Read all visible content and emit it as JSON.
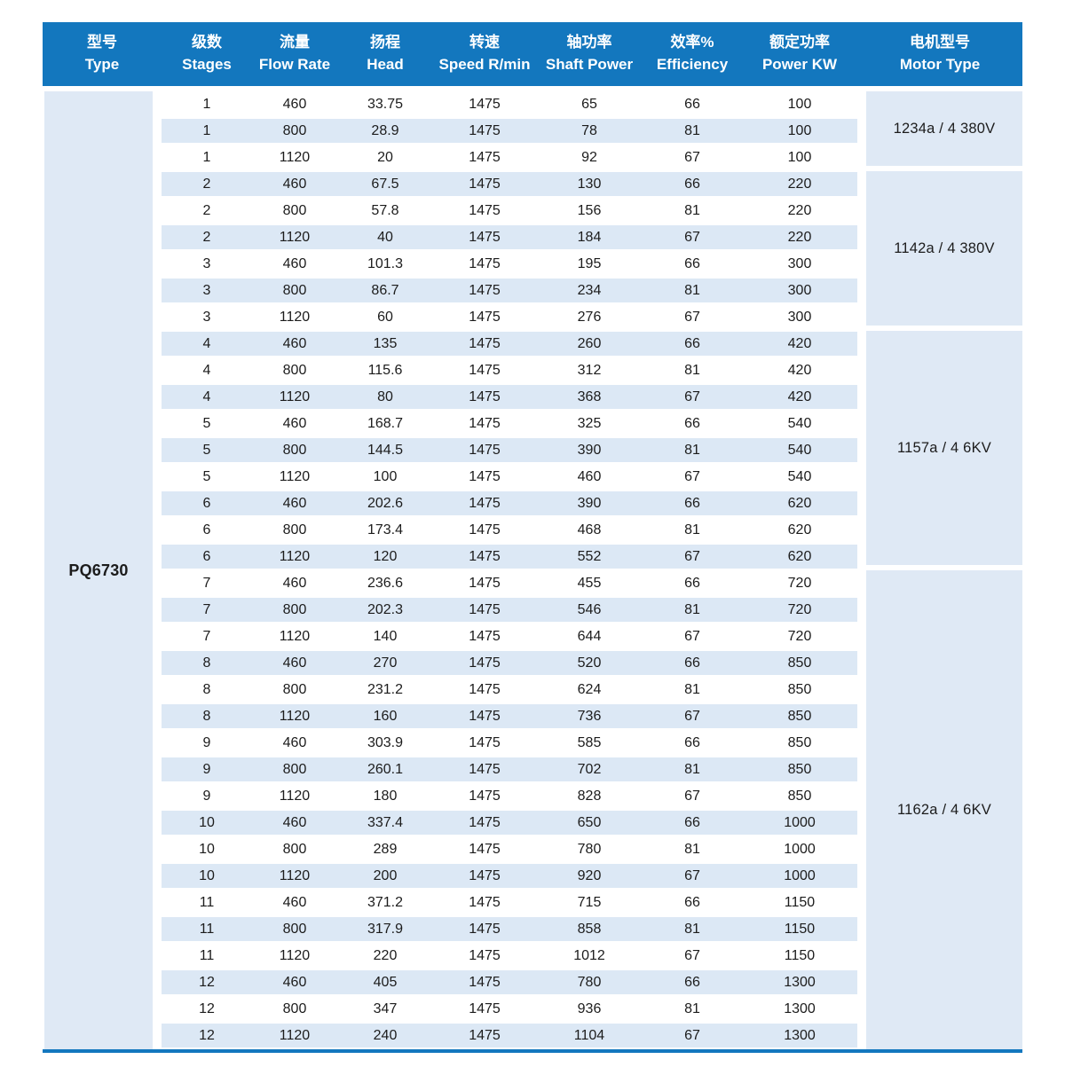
{
  "model": "PQ6730",
  "columns": [
    {
      "zh": "型号",
      "en": "Type"
    },
    {
      "zh": "级数",
      "en": "Stages"
    },
    {
      "zh": "流量",
      "en": "Flow Rate"
    },
    {
      "zh": "扬程",
      "en": "Head"
    },
    {
      "zh": "转速",
      "en": "Speed R/min"
    },
    {
      "zh": "轴功率",
      "en": "Shaft Power"
    },
    {
      "zh": "效率%",
      "en": "Efficiency"
    },
    {
      "zh": "额定功率",
      "en": "Power KW"
    },
    {
      "zh": "电机型号",
      "en": "Motor Type"
    }
  ],
  "rows": [
    [
      "1",
      "460",
      "33.75",
      "1475",
      "65",
      "66",
      "100"
    ],
    [
      "1",
      "800",
      "28.9",
      "1475",
      "78",
      "81",
      "100"
    ],
    [
      "1",
      "1120",
      "20",
      "1475",
      "92",
      "67",
      "100"
    ],
    [
      "2",
      "460",
      "67.5",
      "1475",
      "130",
      "66",
      "220"
    ],
    [
      "2",
      "800",
      "57.8",
      "1475",
      "156",
      "81",
      "220"
    ],
    [
      "2",
      "1120",
      "40",
      "1475",
      "184",
      "67",
      "220"
    ],
    [
      "3",
      "460",
      "101.3",
      "1475",
      "195",
      "66",
      "300"
    ],
    [
      "3",
      "800",
      "86.7",
      "1475",
      "234",
      "81",
      "300"
    ],
    [
      "3",
      "1120",
      "60",
      "1475",
      "276",
      "67",
      "300"
    ],
    [
      "4",
      "460",
      "135",
      "1475",
      "260",
      "66",
      "420"
    ],
    [
      "4",
      "800",
      "115.6",
      "1475",
      "312",
      "81",
      "420"
    ],
    [
      "4",
      "1120",
      "80",
      "1475",
      "368",
      "67",
      "420"
    ],
    [
      "5",
      "460",
      "168.7",
      "1475",
      "325",
      "66",
      "540"
    ],
    [
      "5",
      "800",
      "144.5",
      "1475",
      "390",
      "81",
      "540"
    ],
    [
      "5",
      "1120",
      "100",
      "1475",
      "460",
      "67",
      "540"
    ],
    [
      "6",
      "460",
      "202.6",
      "1475",
      "390",
      "66",
      "620"
    ],
    [
      "6",
      "800",
      "173.4",
      "1475",
      "468",
      "81",
      "620"
    ],
    [
      "6",
      "1120",
      "120",
      "1475",
      "552",
      "67",
      "620"
    ],
    [
      "7",
      "460",
      "236.6",
      "1475",
      "455",
      "66",
      "720"
    ],
    [
      "7",
      "800",
      "202.3",
      "1475",
      "546",
      "81",
      "720"
    ],
    [
      "7",
      "1120",
      "140",
      "1475",
      "644",
      "67",
      "720"
    ],
    [
      "8",
      "460",
      "270",
      "1475",
      "520",
      "66",
      "850"
    ],
    [
      "8",
      "800",
      "231.2",
      "1475",
      "624",
      "81",
      "850"
    ],
    [
      "8",
      "1120",
      "160",
      "1475",
      "736",
      "67",
      "850"
    ],
    [
      "9",
      "460",
      "303.9",
      "1475",
      "585",
      "66",
      "850"
    ],
    [
      "9",
      "800",
      "260.1",
      "1475",
      "702",
      "81",
      "850"
    ],
    [
      "9",
      "1120",
      "180",
      "1475",
      "828",
      "67",
      "850"
    ],
    [
      "10",
      "460",
      "337.4",
      "1475",
      "650",
      "66",
      "1000"
    ],
    [
      "10",
      "800",
      "289",
      "1475",
      "780",
      "81",
      "1000"
    ],
    [
      "10",
      "1120",
      "200",
      "1475",
      "920",
      "67",
      "1000"
    ],
    [
      "11",
      "460",
      "371.2",
      "1475",
      "715",
      "66",
      "1150"
    ],
    [
      "11",
      "800",
      "317.9",
      "1475",
      "858",
      "81",
      "1150"
    ],
    [
      "11",
      "1120",
      "220",
      "1475",
      "1012",
      "67",
      "1150"
    ],
    [
      "12",
      "460",
      "405",
      "1475",
      "780",
      "66",
      "1300"
    ],
    [
      "12",
      "800",
      "347",
      "1475",
      "936",
      "81",
      "1300"
    ],
    [
      "12",
      "1120",
      "240",
      "1475",
      "1104",
      "67",
      "1300"
    ]
  ],
  "motor_groups": [
    {
      "label": "1234a / 4  380V",
      "rows": 3
    },
    {
      "label": "1142a / 4  380V",
      "rows": 6
    },
    {
      "label": "1157a / 4  6KV",
      "rows": 9
    },
    {
      "label": "1162a / 4  6KV",
      "rows": 18
    }
  ],
  "colors": {
    "header_bg": "#1377be",
    "stripe_bg": "#dce8f5",
    "block_bg": "#dfe9f5",
    "header_text": "#ffffff",
    "text": "#1c1c1c",
    "bottom_line": "#1377be"
  }
}
